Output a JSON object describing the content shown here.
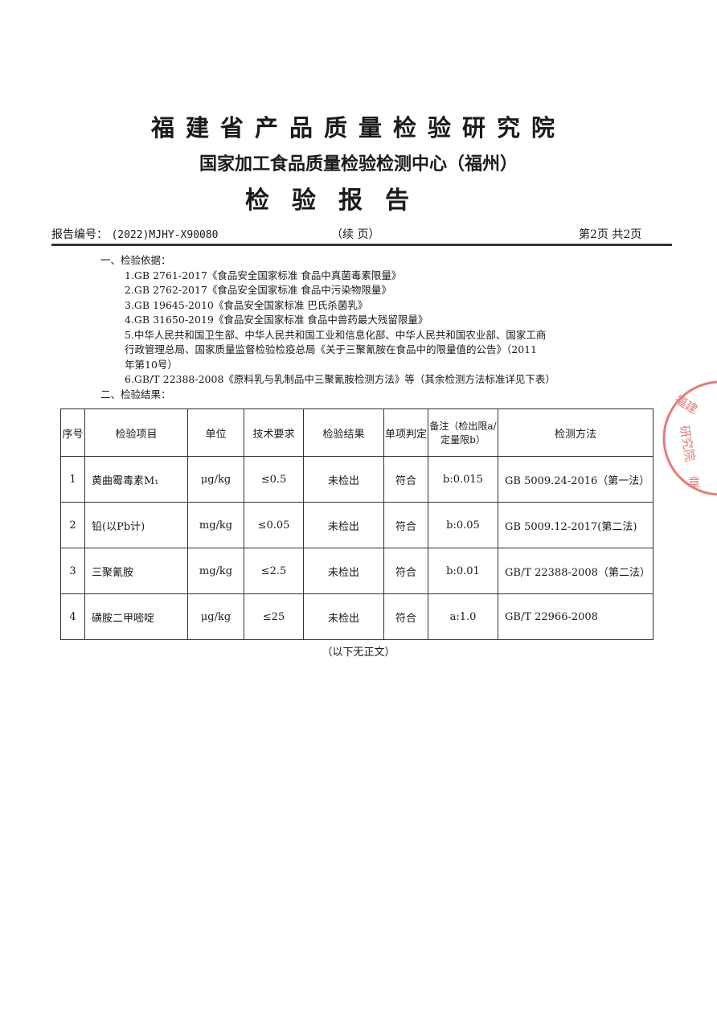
{
  "header": {
    "institute": "福建省产品质量检验研究院",
    "center": "国家加工食品质量检验检测中心（福州）",
    "doc_title": "检验报告",
    "report_no_label": "报告编号：",
    "report_no": "(2022)MJHY-X90080",
    "continued": "（续 页）",
    "page_info": "第2页  共2页"
  },
  "basis": {
    "heading": "一、检验依据：",
    "items": [
      "1.GB 2761-2017《食品安全国家标准 食品中真菌毒素限量》",
      "2.GB 2762-2017《食品安全国家标准 食品中污染物限量》",
      "3.GB 19645-2010《食品安全国家标准 巴氏杀菌乳》",
      "4.GB 31650-2019《食品安全国家标准 食品中兽药最大残留限量》",
      "5.中华人民共和国卫生部、中华人民共和国工业和信息化部、中华人民共和国农业部、国家工商",
      "行政管理总局、国家质量监督检验检疫总局《关于三聚氰胺在食品中的限量值的公告》（2011",
      "年第10号）",
      "6.GB/T 22388-2008《原料乳与乳制品中三聚氰胺检测方法》等（其余检测方法标准详见下表）"
    ]
  },
  "results": {
    "heading": "二、检验结果：",
    "columns": [
      "序号",
      "检验项目",
      "单位",
      "技术要求",
      "检验结果",
      "单项判定",
      "备注（检出限a/定量限b）",
      "检测方法"
    ],
    "rows": [
      [
        "1",
        "黄曲霉毒素M₁",
        "μg/kg",
        "≤0.5",
        "未检出",
        "符合",
        "b:0.015",
        "GB 5009.24-2016（第一法）"
      ],
      [
        "2",
        "铅(以Pb计)",
        "mg/kg",
        "≤0.05",
        "未检出",
        "符合",
        "b:0.05",
        "GB 5009.12-2017(第二法)"
      ],
      [
        "3",
        "三聚氰胺",
        "mg/kg",
        "≤2.5",
        "未检出",
        "符合",
        "b:0.01",
        "GB/T 22388-2008（第二法）"
      ],
      [
        "4",
        "磺胺二甲嘧啶",
        "μg/kg",
        "≤25",
        "未检出",
        "符合",
        "a:1.0",
        "GB/T 22966-2008"
      ]
    ],
    "end_note": "（以下无正文）"
  },
  "stamp": {
    "text": "福建省产品质量检验研究院 检验检测专用章",
    "color": "#e0504a"
  }
}
